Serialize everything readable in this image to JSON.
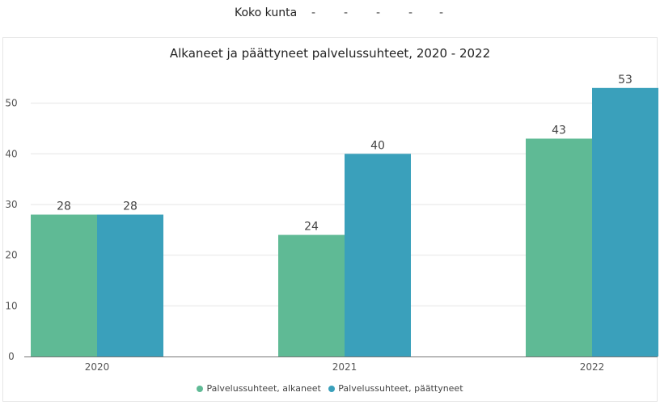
{
  "filter": {
    "label": "Koko kunta",
    "placeholders": [
      "-",
      "-",
      "-",
      "-",
      "-"
    ]
  },
  "colors": {
    "alkaneet": "#5fba95",
    "paattyneet": "#3aa0bb",
    "grid": "#e6e6e6",
    "axis": "#777777",
    "text": "#555555"
  },
  "chart_data": {
    "type": "bar",
    "title": "Alkaneet ja päättyneet palvelussuhteet, 2020 - 2022",
    "categories": [
      "2020",
      "2021",
      "2022"
    ],
    "series": [
      {
        "name": "Palvelussuhteet, alkaneet",
        "values": [
          28,
          24,
          43
        ]
      },
      {
        "name": "Palvelussuhteet, päättyneet",
        "values": [
          28,
          40,
          53
        ]
      }
    ],
    "yticks": [
      0,
      10,
      20,
      30,
      40,
      50
    ],
    "ylim": [
      0,
      56
    ],
    "grid": true,
    "legend": "bottom-center",
    "data_labels": true
  }
}
